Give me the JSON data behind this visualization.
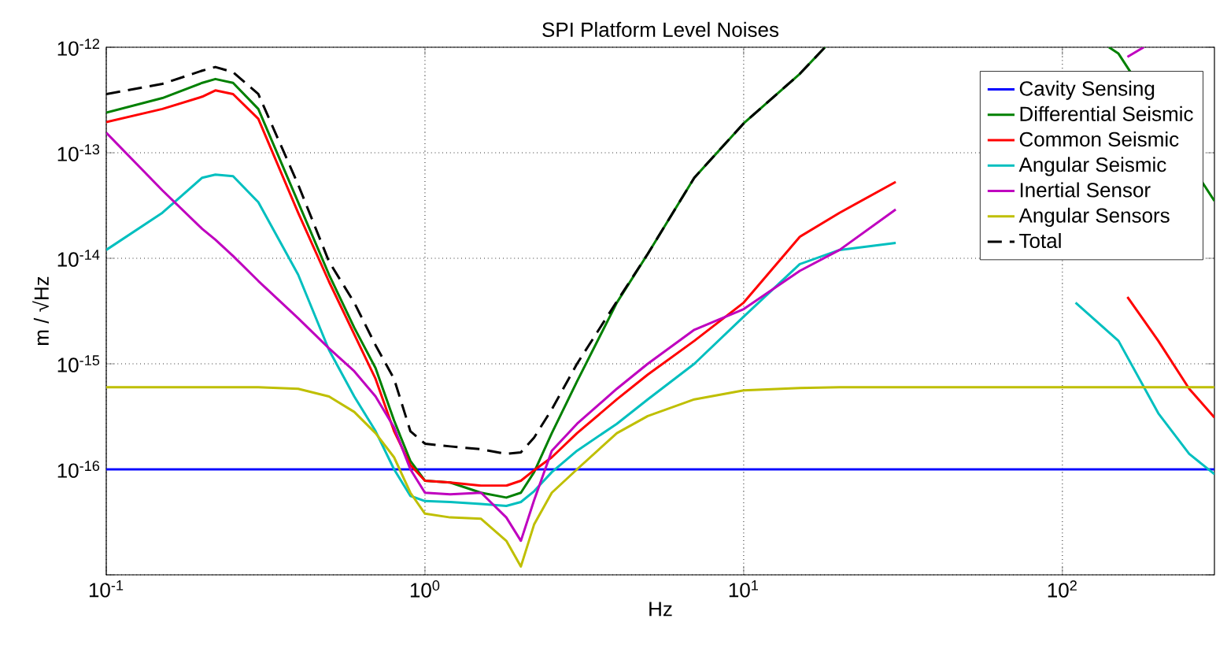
{
  "chart_data": {
    "type": "line",
    "title": "SPI Platform Level Noises",
    "xlabel": "Hz",
    "ylabel": "m / √Hz",
    "log": "xy",
    "grid": true,
    "legend": "top right",
    "xlim": [
      0.1,
      300
    ],
    "ylim": [
      1e-17,
      1e-12
    ],
    "xticks": [
      {
        "value": 0.1,
        "label": "10$^{-1}$"
      },
      {
        "value": 1,
        "label": "10$^{0}$"
      },
      {
        "value": 10,
        "label": "10$^{1}$"
      },
      {
        "value": 100,
        "label": "10$^{2}$"
      }
    ],
    "yticks": [
      {
        "value": 1e-17,
        "label": null
      },
      {
        "value": 1e-16,
        "label": "10$^{-16}$"
      },
      {
        "value": 1e-15,
        "label": "10$^{-15}$"
      },
      {
        "value": 1e-14,
        "label": "10$^{-14}$"
      },
      {
        "value": 1e-13,
        "label": "10$^{-13}$"
      },
      {
        "value": 1e-12,
        "label": "10$^{-12}$"
      }
    ],
    "series": [
      {
        "name": "Cavity Sensing",
        "color": "#0000ff",
        "line_style": "solid",
        "x": [
          0.1,
          300
        ],
        "values": [
          1e-16,
          1e-16
        ]
      },
      {
        "name": "Differential Seismic",
        "color": "#008000",
        "line_style": "solid",
        "x": [
          0.1,
          0.15,
          0.2,
          0.22,
          0.25,
          0.3,
          0.4,
          0.5,
          0.6,
          0.7,
          0.8,
          0.9,
          1,
          1.2,
          1.5,
          1.8,
          2,
          2.2,
          2.5,
          3,
          4,
          5,
          7,
          10,
          15,
          18,
          30,
          140,
          150,
          300
        ],
        "values": [
          2.4e-13,
          3.3e-13,
          4.6e-13,
          5e-13,
          4.6e-13,
          2.6e-13,
          3.4e-14,
          7e-15,
          2.2e-15,
          9.1e-16,
          2.9e-16,
          1.2e-16,
          7.8e-17,
          7.5e-17,
          6e-17,
          5.4e-17,
          6e-17,
          9.4e-17,
          2.2e-16,
          6.8e-16,
          3.8e-15,
          1.1e-14,
          5.8e-14,
          1.9e-13,
          5.6e-13,
          1e-12,
          null,
          1e-12,
          8.7e-13,
          3.5e-14
        ]
      },
      {
        "name": "Common Seismic",
        "color": "#ff0000",
        "line_style": "solid",
        "x": [
          0.1,
          0.15,
          0.2,
          0.22,
          0.25,
          0.3,
          0.4,
          0.5,
          0.6,
          0.7,
          0.8,
          0.9,
          1,
          1.2,
          1.5,
          1.8,
          2,
          2.2,
          2.5,
          3,
          4,
          5,
          7,
          10,
          15,
          20,
          30,
          50,
          160,
          200,
          250,
          300
        ],
        "values": [
          1.95e-13,
          2.6e-13,
          3.4e-13,
          3.9e-13,
          3.6e-13,
          2.1e-13,
          2.7e-14,
          6e-15,
          1.9e-15,
          7.2e-16,
          2.3e-16,
          1.1e-16,
          7.8e-17,
          7.5e-17,
          7e-17,
          7e-17,
          7.8e-17,
          9.8e-17,
          1.3e-16,
          2.2e-16,
          4.6e-16,
          7.9e-16,
          1.65e-15,
          3.8e-15,
          1.6e-14,
          2.7e-14,
          5.3e-14,
          null,
          4.3e-15,
          1.65e-15,
          5.8e-16,
          3.1e-16
        ]
      },
      {
        "name": "Angular Seismic",
        "color": "#00bfbf",
        "line_style": "solid",
        "x": [
          0.1,
          0.15,
          0.2,
          0.22,
          0.25,
          0.3,
          0.4,
          0.5,
          0.6,
          0.7,
          0.8,
          0.9,
          1,
          1.2,
          1.5,
          1.8,
          2,
          2.2,
          2.5,
          3,
          4,
          5,
          7,
          10,
          15,
          20,
          30,
          50,
          110,
          150,
          200,
          250,
          300
        ],
        "values": [
          1.2e-14,
          2.7e-14,
          5.8e-14,
          6.2e-14,
          6e-14,
          3.4e-14,
          7e-15,
          1.35e-15,
          4.9e-16,
          2.3e-16,
          1e-16,
          5.6e-17,
          5e-17,
          4.9e-17,
          4.7e-17,
          4.5e-17,
          4.9e-17,
          6.2e-17,
          9.4e-17,
          1.5e-16,
          2.7e-16,
          4.6e-16,
          1e-15,
          2.8e-15,
          8.8e-15,
          1.2e-14,
          1.4e-14,
          null,
          3.8e-15,
          1.65e-15,
          3.4e-16,
          1.4e-16,
          9e-17
        ]
      },
      {
        "name": "Inertial Sensor",
        "color": "#bf00bf",
        "line_style": "solid",
        "x": [
          0.1,
          0.15,
          0.2,
          0.22,
          0.25,
          0.3,
          0.4,
          0.5,
          0.6,
          0.7,
          0.8,
          0.9,
          1,
          1.2,
          1.5,
          1.8,
          2,
          2.2,
          2.5,
          3,
          4,
          5,
          7,
          10,
          15,
          20,
          30,
          50,
          160,
          180
        ],
        "values": [
          1.55e-13,
          4.4e-14,
          1.9e-14,
          1.5e-14,
          1.05e-14,
          6.1e-15,
          2.7e-15,
          1.4e-15,
          8.5e-16,
          4.9e-16,
          2.5e-16,
          1e-16,
          6e-17,
          5.8e-17,
          6e-17,
          3.5e-17,
          2.1e-17,
          5.1e-17,
          1.5e-16,
          2.7e-16,
          5.8e-16,
          1e-15,
          2.1e-15,
          3.3e-15,
          7.6e-15,
          1.2e-14,
          2.9e-14,
          null,
          8.1e-13,
          1e-12
        ]
      },
      {
        "name": "Angular Sensors",
        "color": "#bfbf00",
        "line_style": "solid",
        "x": [
          0.1,
          0.15,
          0.2,
          0.22,
          0.25,
          0.3,
          0.4,
          0.5,
          0.6,
          0.7,
          0.8,
          0.9,
          1,
          1.2,
          1.5,
          1.8,
          2,
          2.2,
          2.5,
          3,
          4,
          5,
          7,
          10,
          15,
          20,
          30,
          50,
          100,
          300
        ],
        "values": [
          6e-16,
          6e-16,
          6e-16,
          6e-16,
          6e-16,
          6e-16,
          5.8e-16,
          4.9e-16,
          3.5e-16,
          2.2e-16,
          1.3e-16,
          6e-17,
          3.8e-17,
          3.5e-17,
          3.4e-17,
          2.1e-17,
          1.2e-17,
          3e-17,
          6e-17,
          1e-16,
          2.2e-16,
          3.2e-16,
          4.6e-16,
          5.6e-16,
          5.9e-16,
          6e-16,
          6e-16,
          6e-16,
          6e-16,
          6e-16
        ]
      },
      {
        "name": "Total",
        "color": "#000000",
        "line_style": "dashed",
        "x": [
          0.1,
          0.15,
          0.2,
          0.22,
          0.25,
          0.3,
          0.4,
          0.5,
          0.6,
          0.7,
          0.8,
          0.9,
          1,
          1.2,
          1.5,
          1.8,
          2,
          2.2,
          2.5,
          3,
          4,
          5,
          7,
          10,
          15,
          18
        ],
        "values": [
          3.6e-13,
          4.5e-13,
          6e-13,
          6.5e-13,
          5.8e-13,
          3.6e-13,
          5e-14,
          9.3e-15,
          3.8e-15,
          1.5e-15,
          7.2e-16,
          2.3e-16,
          1.75e-16,
          1.65e-16,
          1.55e-16,
          1.4e-16,
          1.45e-16,
          2e-16,
          3.7e-16,
          1e-15,
          3.9e-15,
          1.1e-14,
          5.8e-14,
          1.9e-13,
          5.6e-13,
          1e-12
        ]
      }
    ]
  }
}
